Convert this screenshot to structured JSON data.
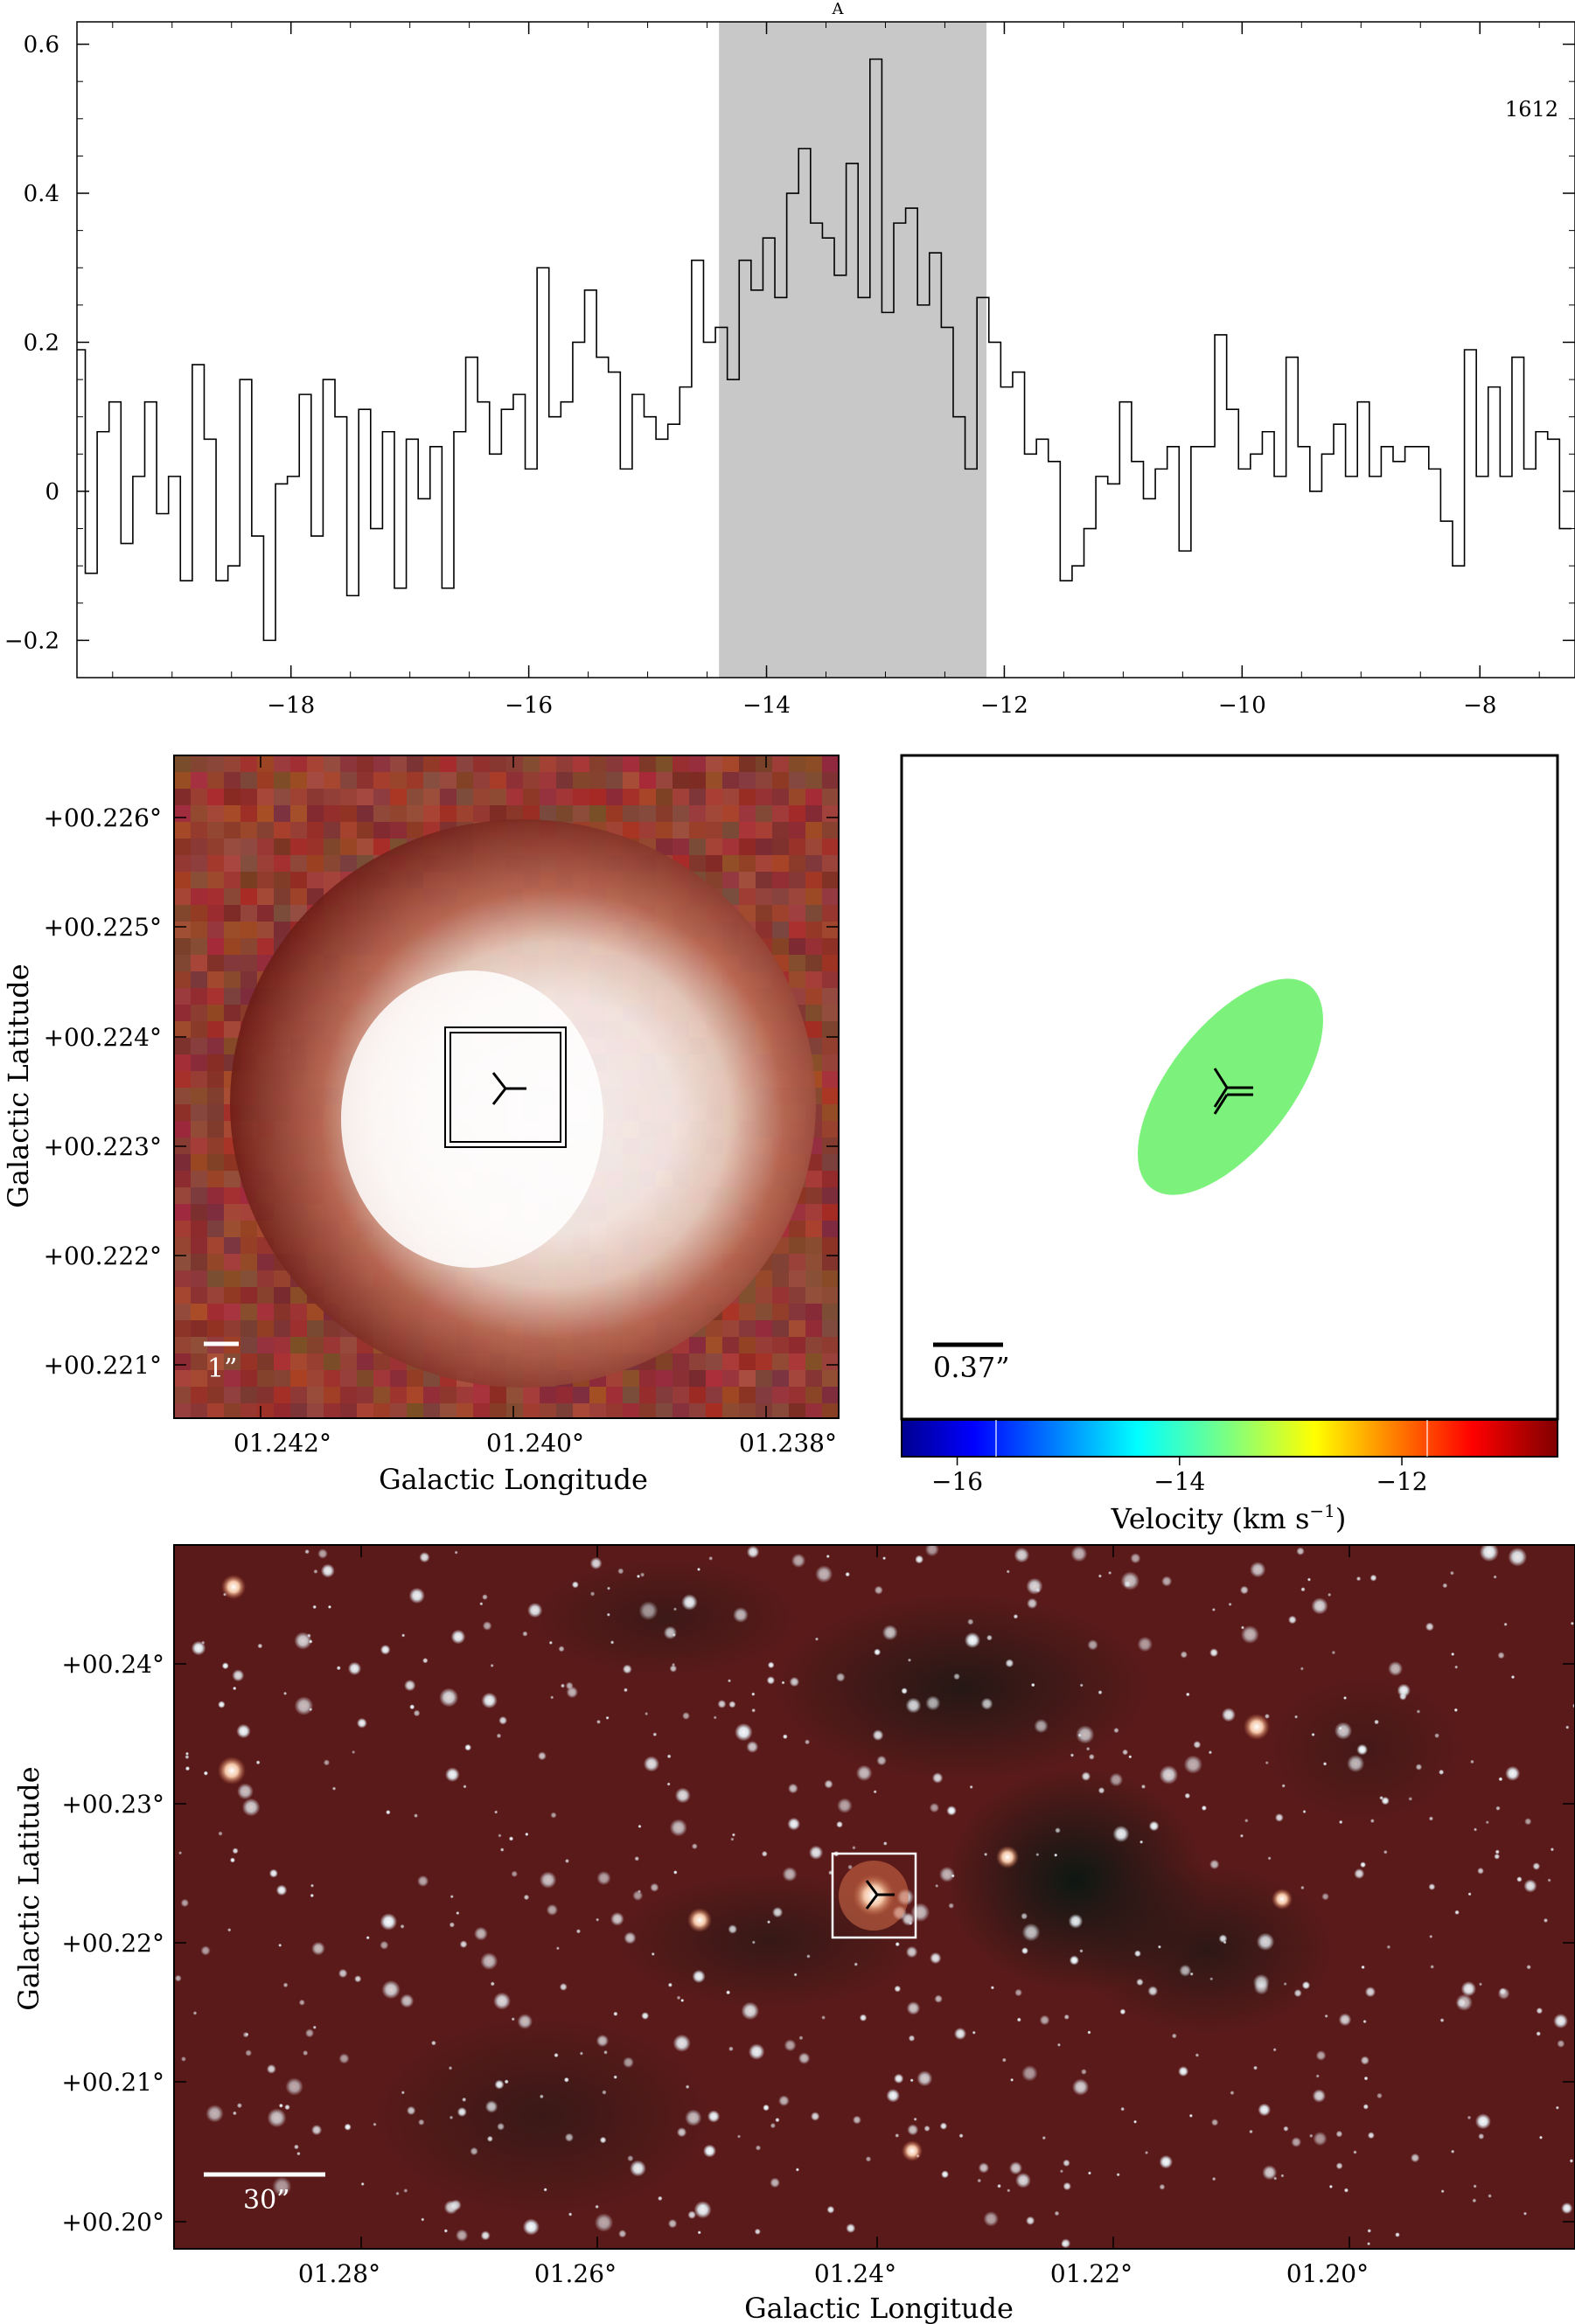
{
  "spectrum": {
    "label_top": "A",
    "freq_label": "1612",
    "x_ticks": [
      "−18",
      "−16",
      "−14",
      "−12",
      "−10",
      "−8"
    ],
    "y_ticks": [
      "0.6",
      "0.4",
      "0.2",
      "0",
      "−0.2"
    ],
    "shade_color": "#c8c8c8"
  },
  "zoom_panel": {
    "x_ticks": [
      "01.242°",
      "01.240°",
      "01.238°"
    ],
    "y_ticks": [
      "+00.226°",
      "+00.225°",
      "+00.224°",
      "+00.223°",
      "+00.222°",
      "+00.221°"
    ],
    "xlabel": "Galactic Longitude",
    "ylabel": "Galactic Latitude",
    "scale_label": "1”"
  },
  "maser_panel": {
    "scale_label": "0.37”",
    "ellipse_color": "#7cf27c",
    "colorbar_ticks": [
      "−16",
      "−14",
      "−12"
    ],
    "colorbar_label": "Velocity (km s",
    "colorbar_unit_exp": "−1",
    "colorbar_label_end": ")"
  },
  "wide_panel": {
    "x_ticks": [
      "01.28°",
      "01.26°",
      "01.24°",
      "01.22°",
      "01.20°"
    ],
    "y_ticks": [
      "+00.24°",
      "+00.23°",
      "+00.22°",
      "+00.21°",
      "+00.20°"
    ],
    "xlabel": "Galactic Longitude",
    "ylabel": "Galactic Latitude",
    "scale_label": "30”"
  },
  "chart_data": [
    {
      "type": "line",
      "subtype": "step",
      "xlim": [
        -19.8,
        -7.2
      ],
      "ylim": [
        -0.25,
        0.63
      ],
      "shaded_range": [
        -14.4,
        -12.15
      ],
      "x": [
        -19.78,
        -19.68,
        -19.58,
        -19.48,
        -19.38,
        -19.28,
        -19.18,
        -19.08,
        -18.98,
        -18.88,
        -18.78,
        -18.68,
        -18.58,
        -18.48,
        -18.38,
        -18.28,
        -18.18,
        -18.08,
        -17.98,
        -17.88,
        -17.78,
        -17.68,
        -17.58,
        -17.48,
        -17.38,
        -17.28,
        -17.18,
        -17.08,
        -16.98,
        -16.88,
        -16.78,
        -16.68,
        -16.58,
        -16.48,
        -16.38,
        -16.28,
        -16.18,
        -16.08,
        -15.98,
        -15.88,
        -15.78,
        -15.68,
        -15.58,
        -15.48,
        -15.38,
        -15.28,
        -15.18,
        -15.08,
        -14.98,
        -14.88,
        -14.78,
        -14.68,
        -14.58,
        -14.48,
        -14.38,
        -14.28,
        -14.18,
        -14.08,
        -13.98,
        -13.88,
        -13.78,
        -13.68,
        -13.58,
        -13.48,
        -13.38,
        -13.28,
        -13.18,
        -13.08,
        -12.98,
        -12.88,
        -12.78,
        -12.68,
        -12.58,
        -12.48,
        -12.38,
        -12.28,
        -12.18,
        -12.08,
        -11.98,
        -11.88,
        -11.78,
        -11.68,
        -11.58,
        -11.48,
        -11.38,
        -11.28,
        -11.18,
        -11.08,
        -10.98,
        -10.88,
        -10.78,
        -10.68,
        -10.58,
        -10.48,
        -10.38,
        -10.28,
        -10.18,
        -10.08,
        -9.98,
        -9.88,
        -9.78,
        -9.68,
        -9.58,
        -9.48,
        -9.38,
        -9.28,
        -9.18,
        -9.08,
        -8.98,
        -8.88,
        -8.78,
        -8.68,
        -8.58,
        -8.48,
        -8.38,
        -8.28,
        -8.18,
        -8.08,
        -7.98,
        -7.88,
        -7.78,
        -7.68,
        -7.58,
        -7.48,
        -7.38,
        -7.28
      ],
      "y": [
        0.19,
        -0.11,
        0.08,
        0.12,
        -0.07,
        0.02,
        0.12,
        -0.03,
        0.02,
        -0.12,
        0.17,
        0.07,
        -0.12,
        -0.1,
        0.15,
        -0.06,
        -0.2,
        0.01,
        0.02,
        0.13,
        -0.06,
        0.15,
        0.1,
        -0.14,
        0.11,
        -0.05,
        0.08,
        -0.13,
        0.07,
        -0.01,
        0.06,
        -0.13,
        0.08,
        0.18,
        0.12,
        0.05,
        0.11,
        0.13,
        0.03,
        0.3,
        0.1,
        0.12,
        0.2,
        0.27,
        0.18,
        0.16,
        0.03,
        0.13,
        0.1,
        0.07,
        0.09,
        0.14,
        0.31,
        0.2,
        0.22,
        0.15,
        0.31,
        0.27,
        0.34,
        0.26,
        0.4,
        0.46,
        0.36,
        0.34,
        0.29,
        0.44,
        0.26,
        0.58,
        0.24,
        0.36,
        0.38,
        0.25,
        0.32,
        0.22,
        0.1,
        0.03,
        0.26,
        0.2,
        0.14,
        0.16,
        0.05,
        0.07,
        0.04,
        -0.12,
        -0.1,
        -0.05,
        0.02,
        0.01,
        0.12,
        0.04,
        -0.01,
        0.03,
        0.06,
        -0.08,
        0.06,
        0.06,
        0.21,
        0.11,
        0.03,
        0.05,
        0.08,
        0.02,
        0.18,
        0.06,
        0.0,
        0.05,
        0.09,
        0.02,
        0.12,
        0.02,
        0.06,
        0.04,
        0.06,
        0.06,
        0.03,
        -0.04,
        -0.1,
        0.19,
        0.02,
        0.14,
        0.02,
        0.18,
        0.03,
        0.08,
        0.07,
        -0.05
      ]
    },
    {
      "type": "scatter",
      "maser_spots": [
        {
          "vel_range": [
            -13.5,
            -12.5
          ],
          "color": "#7cf27c"
        }
      ],
      "colorbar": {
        "min": -16.5,
        "max": -10.6,
        "ticks": [
          -16,
          -14,
          -12
        ]
      }
    }
  ]
}
